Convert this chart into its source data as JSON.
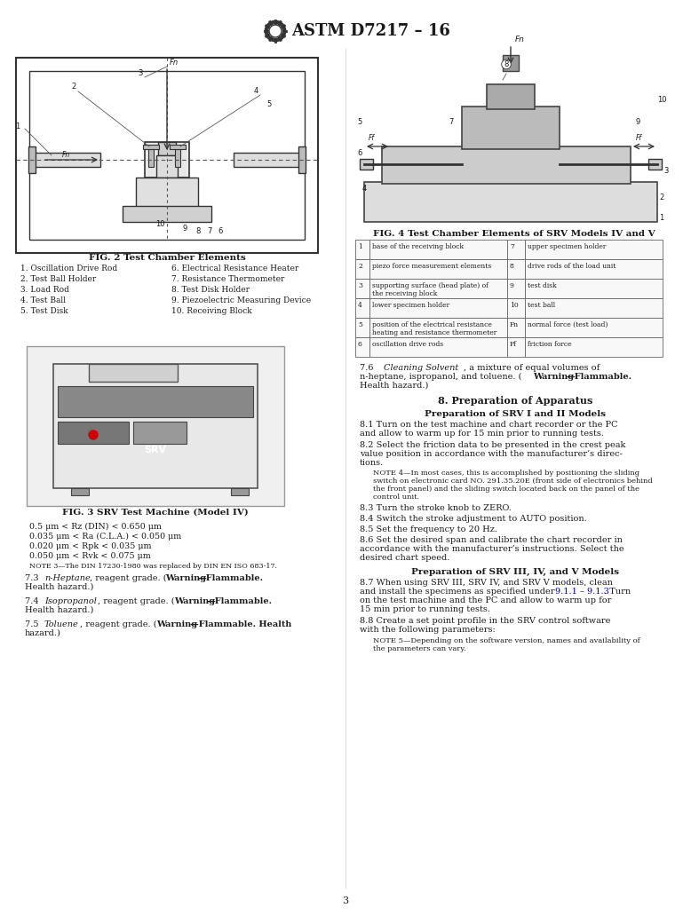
{
  "title_logo": "ASTM D7217 – 16",
  "page_number": "3",
  "background_color": "#ffffff",
  "text_color": "#1a1a1a",
  "fig2_caption": "FIG. 2 Test Chamber Elements",
  "fig3_caption": "FIG. 3 SRV Test Machine (Model IV)",
  "fig4_caption": "FIG. 4 Test Chamber Elements of SRV Models IV and V",
  "fig2_labels_left": [
    "1. Oscillation Drive Rod",
    "2. Test Ball Holder",
    "3. Load Rod",
    "4. Test Ball",
    "5. Test Disk"
  ],
  "fig2_labels_right": [
    "6. Electrical Resistance Heater",
    "7. Resistance Thermometer",
    "8. Test Disk Holder",
    "9. Piezoelectric Measuring Device",
    "10. Receiving Block"
  ],
  "fig4_table": [
    [
      "1",
      "base of the receiving block",
      "7",
      "upper specimen holder"
    ],
    [
      "2",
      "piezo force measurement elements",
      "8",
      "drive rods of the load unit"
    ],
    [
      "3",
      "supporting surface (head plate) of\nthe receiving block",
      "9",
      "test disk"
    ],
    [
      "4",
      "lower specimen holder",
      "10",
      "test ball"
    ],
    [
      "5",
      "position of the electrical resistance\nheating and resistance thermometer",
      "Fn",
      "normal force (test load)"
    ],
    [
      "6",
      "oscillation drive rods",
      "Ff",
      "friction force"
    ]
  ],
  "section_76": "7.6  Cleaning Solvent, a mixture of equal volumes of\nn-heptane, ispropanol, and toluene. (Warning—Flammable.\nHealth hazard.)",
  "section_8_head": "8. Preparation of Apparatus",
  "section_8_sub1": "Preparation of SRV I and II Models",
  "section_81": "8.1 Turn on the test machine and chart recorder or the PC\nand allow to warm up for 15 min prior to running tests.",
  "section_82": "8.2 Select the friction data to be presented in the crest peak\nvalue position in accordance with the manufacturer’s direc-\ntions.",
  "note4": "NOTE 4—In most cases, this is accomplished by positioning the sliding\nswitch on electronic card NO. 291.35.20E (front side of electronics behind\nthe front panel) and the sliding switch located back on the panel of the\ncontrol unit.",
  "section_83": "8.3 Turn the stroke knob to ZERO.",
  "section_84": "8.4 Switch the stroke adjustment to AUTO position.",
  "section_85": "8.5 Set the frequency to 20 Hz.",
  "section_86": "8.6 Set the desired span and calibrate the chart recorder in\naccordance with the manufacturer’s instructions. Select the\ndesired chart speed.",
  "section_8_sub2": "Preparation of SRV III, IV, and V Models",
  "section_87": "8.7 When using SRV III, SRV IV, and SRV V models, clean\nand install the specimens as specified under 9.1.1 – 9.1.3. Turn\non the test machine and the PC and allow to warm up for\n15 min prior to running tests.",
  "section_88": "8.8 Create a set point profile in the SRV control software\nwith the following parameters:",
  "note5": "NOTE 5—Depending on the software version, names and availability of\nthe parameters can vary.",
  "specs": [
    "0.5 μm < Rz (DIN) < 0.650 μm",
    "0.035 μm < Ra (C.L.A.) < 0.050 μm",
    "0.020 μm < Rpk < 0.035 μm",
    "0.050 μm < Rvk < 0.075 μm"
  ],
  "note3": "NOTE 3—The DIN 17230-1980 was replaced by DIN EN ISO 683-17.",
  "section_73": "7.3  n-Heptane, reagent grade. (Warning—Flammable.\nHealth hazard.)",
  "section_74": "7.4  Isopropanol, reagent grade. (Warning—Flammable.\nHealth hazard.)",
  "section_75": "7.5  Toluene, reagent grade. (Warning—Flammable. Health\nhazard.)"
}
